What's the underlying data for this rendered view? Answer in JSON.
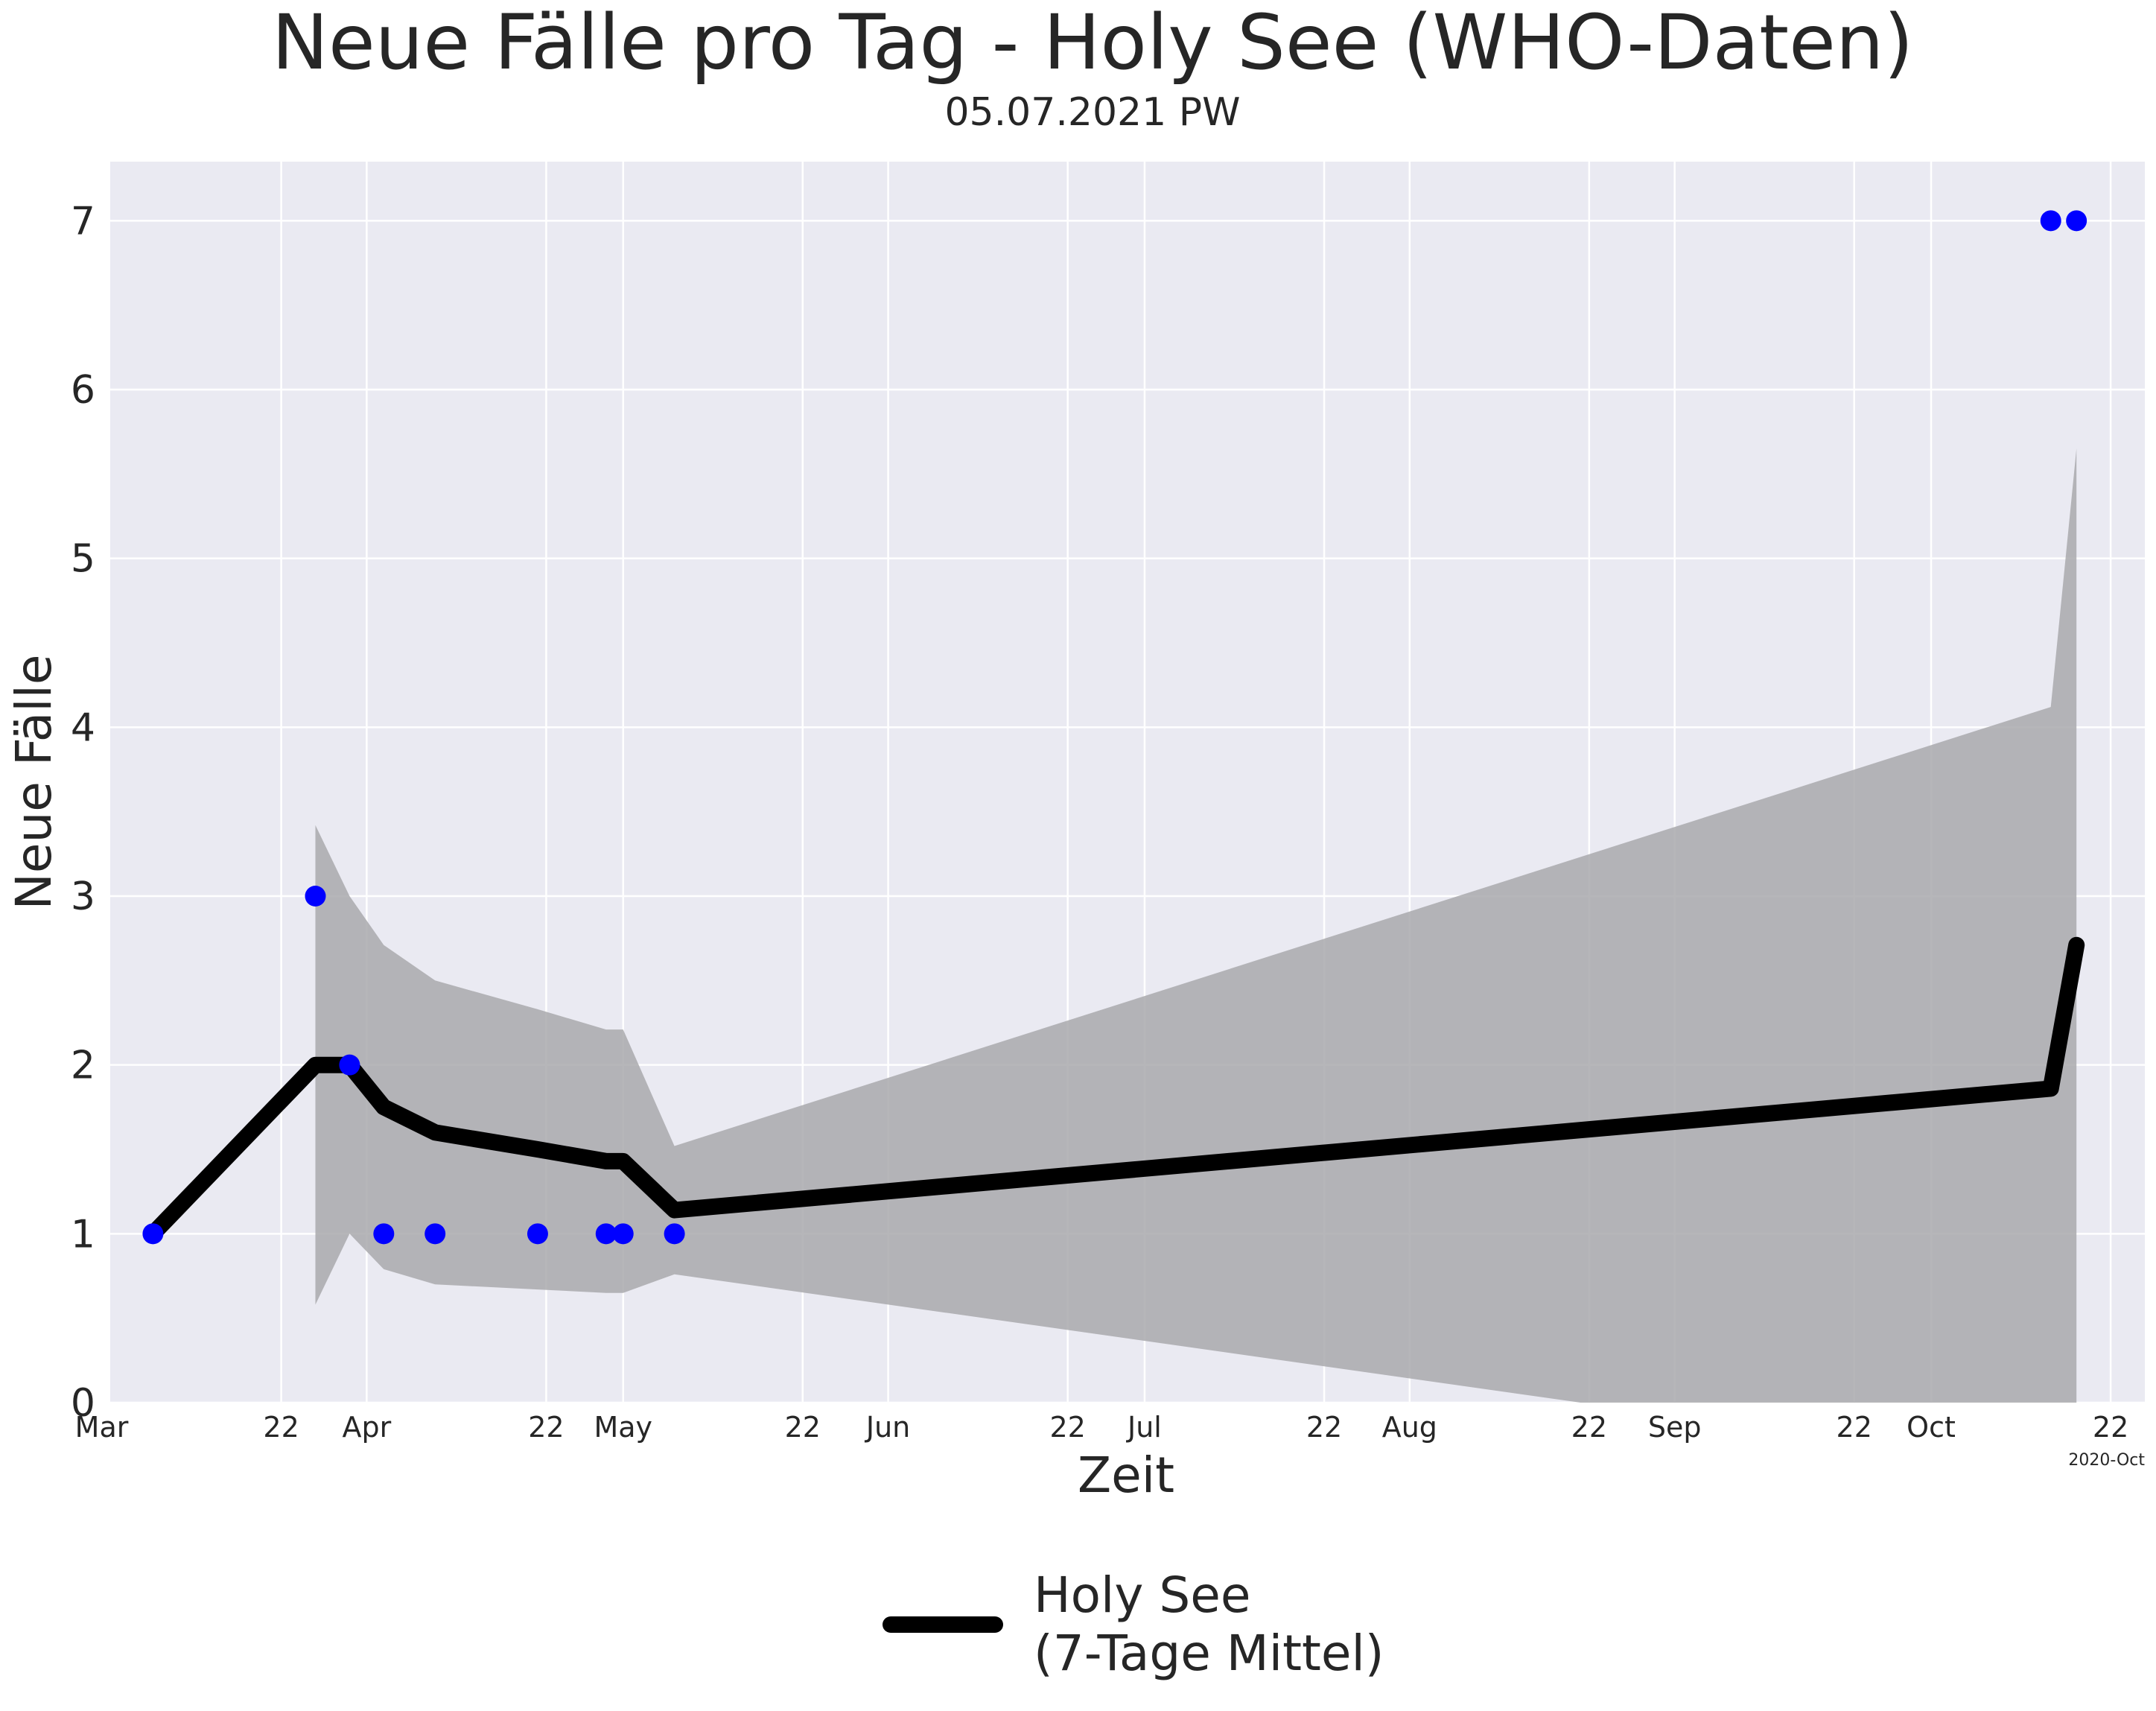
{
  "chart_data": {
    "type": "line",
    "title": "Neue Fälle pro Tag - Holy See (WHO-Daten)",
    "subtitle": "05.07.2021 PW",
    "xlabel": "Zeit",
    "ylabel": "Neue Fälle",
    "ylim": [
      0,
      7.35
    ],
    "xlim": [
      "2020-03-02",
      "2020-10-26"
    ],
    "x_offset_label": "2020-Oct",
    "grid": true,
    "legend_position": "bottom-center",
    "yticks": [
      "0",
      "1",
      "2",
      "3",
      "4",
      "5",
      "6",
      "7"
    ],
    "xticks": [
      {
        "date": "2020-03-01",
        "label": "Mar"
      },
      {
        "date": "2020-03-22",
        "label": "22"
      },
      {
        "date": "2020-04-01",
        "label": "Apr"
      },
      {
        "date": "2020-04-22",
        "label": "22"
      },
      {
        "date": "2020-05-01",
        "label": "May"
      },
      {
        "date": "2020-05-22",
        "label": "22"
      },
      {
        "date": "2020-06-01",
        "label": "Jun"
      },
      {
        "date": "2020-06-22",
        "label": "22"
      },
      {
        "date": "2020-07-01",
        "label": "Jul"
      },
      {
        "date": "2020-07-22",
        "label": "22"
      },
      {
        "date": "2020-08-01",
        "label": "Aug"
      },
      {
        "date": "2020-08-22",
        "label": "22"
      },
      {
        "date": "2020-09-01",
        "label": "Sep"
      },
      {
        "date": "2020-09-22",
        "label": "22"
      },
      {
        "date": "2020-10-01",
        "label": "Oct"
      },
      {
        "date": "2020-10-22",
        "label": "22"
      }
    ],
    "daily_cases": {
      "color": "#0000ff",
      "points": [
        {
          "x": "2020-03-07",
          "y": 1
        },
        {
          "x": "2020-03-26",
          "y": 3
        },
        {
          "x": "2020-03-30",
          "y": 2
        },
        {
          "x": "2020-04-03",
          "y": 1
        },
        {
          "x": "2020-04-09",
          "y": 1
        },
        {
          "x": "2020-04-21",
          "y": 1
        },
        {
          "x": "2020-04-29",
          "y": 1
        },
        {
          "x": "2020-05-01",
          "y": 1
        },
        {
          "x": "2020-05-07",
          "y": 1
        },
        {
          "x": "2020-10-15",
          "y": 7
        },
        {
          "x": "2020-10-18",
          "y": 7
        }
      ]
    },
    "series": [
      {
        "name": "Holy See\n(7-Tage Mittel)",
        "color": "#000000",
        "points": [
          {
            "x": "2020-03-07",
            "y": 1.0
          },
          {
            "x": "2020-03-26",
            "y": 2.0
          },
          {
            "x": "2020-03-30",
            "y": 2.0
          },
          {
            "x": "2020-04-03",
            "y": 1.75
          },
          {
            "x": "2020-04-09",
            "y": 1.6
          },
          {
            "x": "2020-04-21",
            "y": 1.5
          },
          {
            "x": "2020-04-29",
            "y": 1.43
          },
          {
            "x": "2020-05-01",
            "y": 1.43
          },
          {
            "x": "2020-05-07",
            "y": 1.14
          },
          {
            "x": "2020-10-15",
            "y": 1.86
          },
          {
            "x": "2020-10-18",
            "y": 2.71
          }
        ]
      }
    ],
    "band": {
      "color": "#a9a9ad",
      "upper": [
        {
          "x": "2020-03-26",
          "y": 3.42
        },
        {
          "x": "2020-03-30",
          "y": 3.0
        },
        {
          "x": "2020-04-03",
          "y": 2.71
        },
        {
          "x": "2020-04-09",
          "y": 2.5
        },
        {
          "x": "2020-04-21",
          "y": 2.33
        },
        {
          "x": "2020-04-29",
          "y": 2.21
        },
        {
          "x": "2020-05-01",
          "y": 2.21
        },
        {
          "x": "2020-05-07",
          "y": 1.52
        },
        {
          "x": "2020-10-15",
          "y": 4.12
        },
        {
          "x": "2020-10-18",
          "y": 5.65
        }
      ],
      "lower": [
        {
          "x": "2020-03-26",
          "y": 0.58
        },
        {
          "x": "2020-03-30",
          "y": 1.0
        },
        {
          "x": "2020-04-03",
          "y": 0.79
        },
        {
          "x": "2020-04-09",
          "y": 0.7
        },
        {
          "x": "2020-04-21",
          "y": 0.67
        },
        {
          "x": "2020-04-29",
          "y": 0.65
        },
        {
          "x": "2020-05-01",
          "y": 0.65
        },
        {
          "x": "2020-05-07",
          "y": 0.76
        },
        {
          "x": "2020-08-21",
          "y": 0.0
        },
        {
          "x": "2020-10-15",
          "y": 0.0
        },
        {
          "x": "2020-10-18",
          "y": 0.0
        }
      ]
    }
  }
}
